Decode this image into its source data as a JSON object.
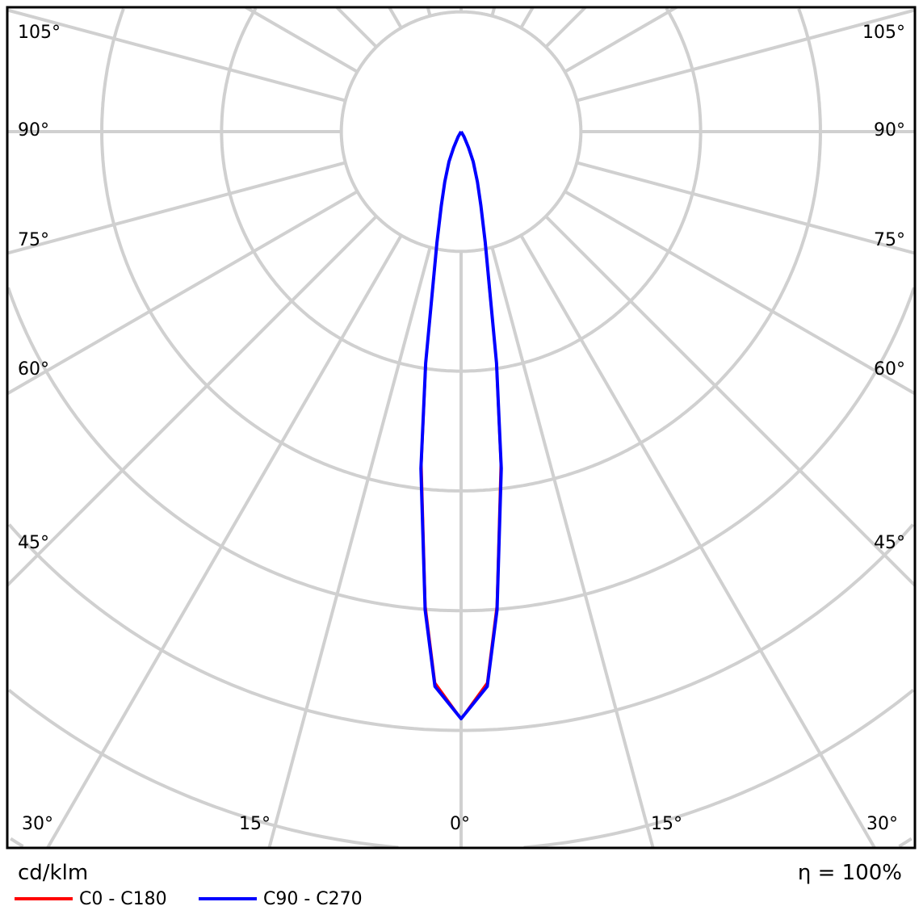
{
  "chart_data": {
    "type": "polar",
    "unit_label": "cd/klm",
    "efficiency_label": "η = 100%",
    "angle_labels_left": [
      "105°",
      "90°",
      "75°",
      "60°",
      "45°"
    ],
    "angle_labels_right": [
      "105°",
      "90°",
      "75°",
      "60°",
      "45°"
    ],
    "angle_labels_bottom": [
      "30°",
      "15°",
      "0°",
      "15°",
      "30°"
    ],
    "grid": true,
    "spoke_step_deg": 15,
    "ring_step_percent_of_peak": 20.4,
    "series": [
      {
        "name": "C0 - C180",
        "color": "#ff0000",
        "gamma": [
          0,
          2.7,
          4.3,
          6.8,
          8.7,
          12.3,
          15,
          18,
          22,
          25,
          30,
          35
        ],
        "relative_intensity": [
          100,
          94,
          81,
          57,
          39.5,
          19,
          13,
          9,
          5.5,
          3,
          1,
          0
        ]
      },
      {
        "name": "C90 - C270",
        "color": "#0000ff",
        "gamma": [
          0,
          2.7,
          4.3,
          6.8,
          8.7,
          12.3,
          15,
          18,
          22,
          25,
          30,
          35
        ],
        "relative_intensity": [
          100,
          94.6,
          81.7,
          57.8,
          39.9,
          19.3,
          13,
          9,
          5.5,
          3,
          1,
          0
        ]
      }
    ]
  }
}
